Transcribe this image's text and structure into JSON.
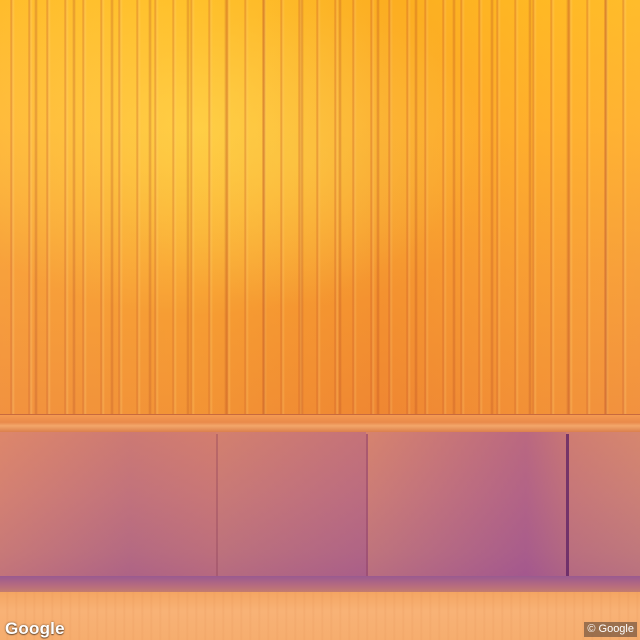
{
  "scene": {
    "description_type": "street-level photo",
    "colors": {
      "wall_orange": "#ffae28",
      "wall_deep_orange": "#f08a34",
      "trim": "#e98a4a",
      "base_mauve": "#c97a7a",
      "base_purple": "#a8608a",
      "ground": "#f6ad6e"
    }
  },
  "watermark": {
    "logo_text": "Google",
    "copyright_text": "© Google"
  }
}
